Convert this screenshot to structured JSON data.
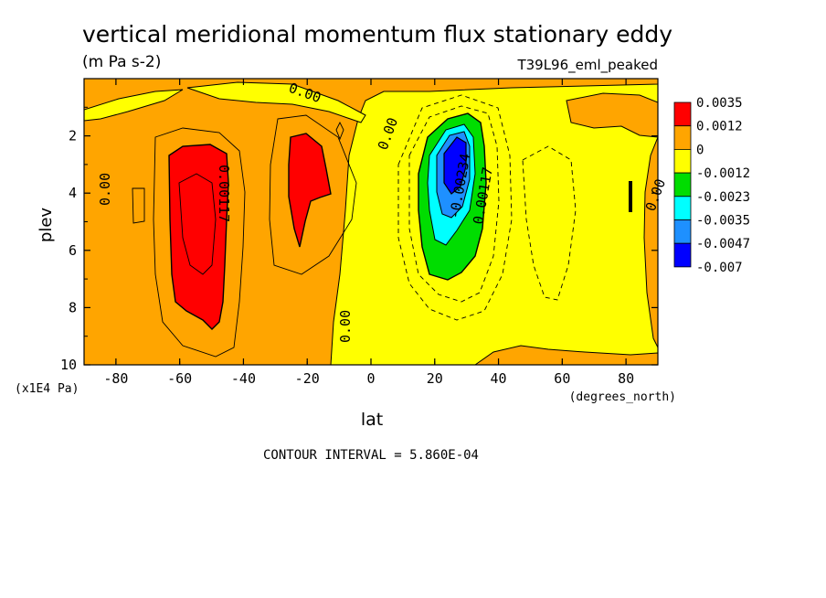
{
  "chart_data": {
    "type": "heatmap",
    "title": "vertical meridional momentum flux stationary eddy",
    "units": "(m Pa s-2)",
    "run_label": "T39L96_eml_peaked",
    "xlabel": "lat",
    "x_units": "(degrees_north)",
    "ylabel": "plev",
    "y_units": "(x1E4 Pa)",
    "xlim": [
      -90,
      90
    ],
    "ylim": [
      0,
      10
    ],
    "y_inverted": true,
    "x_ticks": [
      -80,
      -60,
      -40,
      -20,
      0,
      20,
      40,
      60,
      80
    ],
    "y_ticks": [
      2,
      4,
      6,
      8,
      10
    ],
    "contour_interval_text": "CONTOUR INTERVAL = 5.860E-04",
    "contour_labels": [
      "0.00",
      "0.00",
      "0.00",
      "0.00",
      "0.00",
      "0.00117",
      "0.00117",
      "-0.00234"
    ],
    "colorbar": {
      "labels": [
        "0.0035",
        "0.0012",
        "0",
        "-0.0012",
        "-0.0023",
        "-0.0035",
        "-0.0047",
        "-0.007"
      ],
      "colors": [
        "#ff0000",
        "#ffa500",
        "#ffff00",
        "#00dd00",
        "#00ffff",
        "#1e90ff",
        "#0000ff"
      ]
    },
    "features": [
      {
        "value": 0.0035,
        "lat": [
          -64,
          -46
        ],
        "plev": [
          1.5,
          8.7
        ],
        "description": "positive maximum"
      },
      {
        "value": 0.0035,
        "lat": [
          -26,
          -15
        ],
        "plev": [
          1.9,
          4.1
        ],
        "description": "positive maximum"
      },
      {
        "value": -0.007,
        "lat": [
          20,
          34
        ],
        "plev": [
          1.2,
          7.0
        ],
        "description": "negative minimum"
      }
    ]
  }
}
